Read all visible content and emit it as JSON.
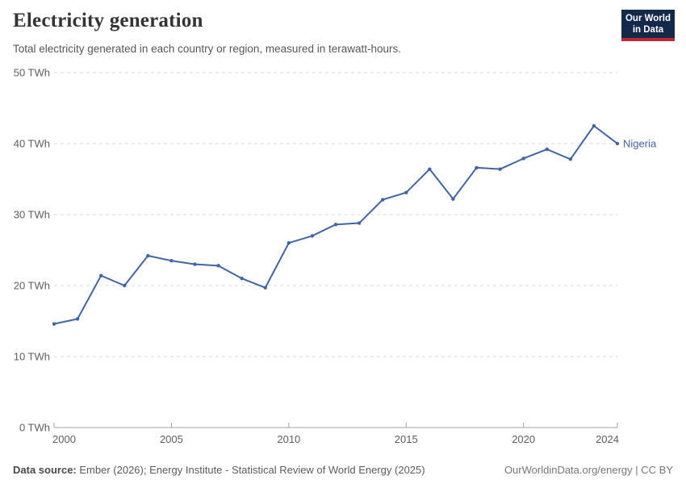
{
  "header": {
    "title": "Electricity generation",
    "subtitle": "Total electricity generated in each country or region, measured in terawatt-hours.",
    "logo": {
      "line1": "Our World",
      "line2": "in Data"
    }
  },
  "chart_data": {
    "type": "line",
    "title": "Electricity generation",
    "unit": "TWh",
    "xlim": [
      2000,
      2024
    ],
    "ylim": [
      0,
      50
    ],
    "x_ticks": [
      2000,
      2005,
      2010,
      2015,
      2020,
      2024
    ],
    "y_ticks": [
      0,
      10,
      20,
      30,
      40,
      50
    ],
    "y_tick_format": "{v} TWh",
    "grid": "horizontal-dashed",
    "legend_position": "end-of-line",
    "series": [
      {
        "name": "Nigeria",
        "color": "#4165a3",
        "x": [
          2000,
          2001,
          2002,
          2003,
          2004,
          2005,
          2006,
          2007,
          2008,
          2009,
          2010,
          2011,
          2012,
          2013,
          2014,
          2015,
          2016,
          2017,
          2018,
          2019,
          2020,
          2021,
          2022,
          2023,
          2024
        ],
        "values": [
          14.6,
          15.3,
          21.4,
          20.0,
          24.2,
          23.5,
          23.0,
          22.8,
          21.0,
          19.7,
          26.0,
          27.0,
          28.6,
          28.8,
          32.1,
          33.1,
          36.4,
          32.2,
          36.6,
          36.4,
          37.9,
          39.2,
          37.8,
          42.5,
          40.0
        ]
      }
    ]
  },
  "colors": {
    "series_blue": "#4165a3",
    "gridline": "#dadada",
    "axis": "#a3a3a3",
    "tick_label": "#5e5e5e",
    "logo_navy": "#12294b",
    "logo_red": "#c0272e"
  },
  "footer": {
    "source_label": "Data source:",
    "source_text": "Ember (2026); Energy Institute - Statistical Review of World Energy (2025)",
    "credit": "OurWorldinData.org/energy | CC BY"
  }
}
